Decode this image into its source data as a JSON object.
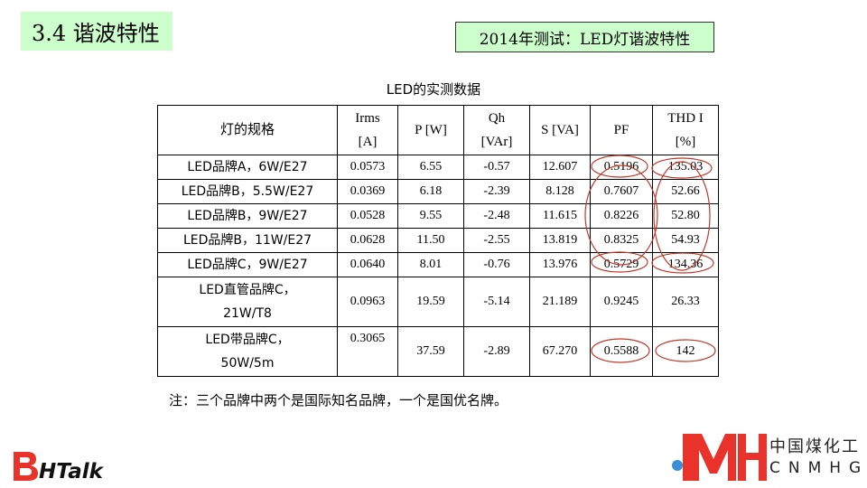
{
  "header": {
    "section_title": "3.4 谐波特性",
    "subtitle": "2014年测试：LED灯谐波特性"
  },
  "table": {
    "caption": "LED的实测数据",
    "columns": [
      {
        "line1": "灯的规格",
        "line2": ""
      },
      {
        "line1": "Irms",
        "line2": "[A]"
      },
      {
        "line1": "P [W]",
        "line2": ""
      },
      {
        "line1": "Qh",
        "line2": "[VAr]"
      },
      {
        "line1": "S [VA]",
        "line2": ""
      },
      {
        "line1": "PF",
        "line2": ""
      },
      {
        "line1": "THD I",
        "line2": "[%]"
      }
    ],
    "rows": [
      {
        "name1": "LED品牌A，6W/E27",
        "name2": "",
        "irms": "0.0573",
        "p": "6.55",
        "qh": "-0.57",
        "s": "12.607",
        "pf": "0.5196",
        "thd": "135.03"
      },
      {
        "name1": "LED品牌B，5.5W/E27",
        "name2": "",
        "irms": "0.0369",
        "p": "6.18",
        "qh": "-2.39",
        "s": "8.128",
        "pf": "0.7607",
        "thd": "52.66"
      },
      {
        "name1": "LED品牌B，9W/E27",
        "name2": "",
        "irms": "0.0528",
        "p": "9.55",
        "qh": "-2.48",
        "s": "11.615",
        "pf": "0.8226",
        "thd": "52.80"
      },
      {
        "name1": "LED品牌B，11W/E27",
        "name2": "",
        "irms": "0.0628",
        "p": "11.50",
        "qh": "-2.55",
        "s": "13.819",
        "pf": "0.8325",
        "thd": "54.93"
      },
      {
        "name1": "LED品牌C，9W/E27",
        "name2": "",
        "irms": "0.0640",
        "p": "8.01",
        "qh": "-0.76",
        "s": "13.976",
        "pf": "0.5729",
        "thd": "134.36"
      },
      {
        "name1": "LED直管品牌C，",
        "name2": "21W/T8",
        "irms": "0.0963",
        "p": "19.59",
        "qh": "-5.14",
        "s": "21.189",
        "pf": "0.9245",
        "thd": "26.33"
      },
      {
        "name1": "LED带品牌C，",
        "name2": "50W/5m",
        "irms": "0.3065",
        "p": "37.59",
        "qh": "-2.89",
        "s": "67.270",
        "pf": "0.5588",
        "thd": "142"
      }
    ]
  },
  "note": "注：三个品牌中两个是国际知名品牌，一个是国优名牌。",
  "footer": {
    "left_logo_text": "HTalk",
    "right_logo_cn": "中国煤化工",
    "right_logo_en": "CNMHG"
  },
  "colors": {
    "title_bg": "#ccffcc",
    "ring": "#c0392b",
    "logo_red": "#e8322a"
  }
}
